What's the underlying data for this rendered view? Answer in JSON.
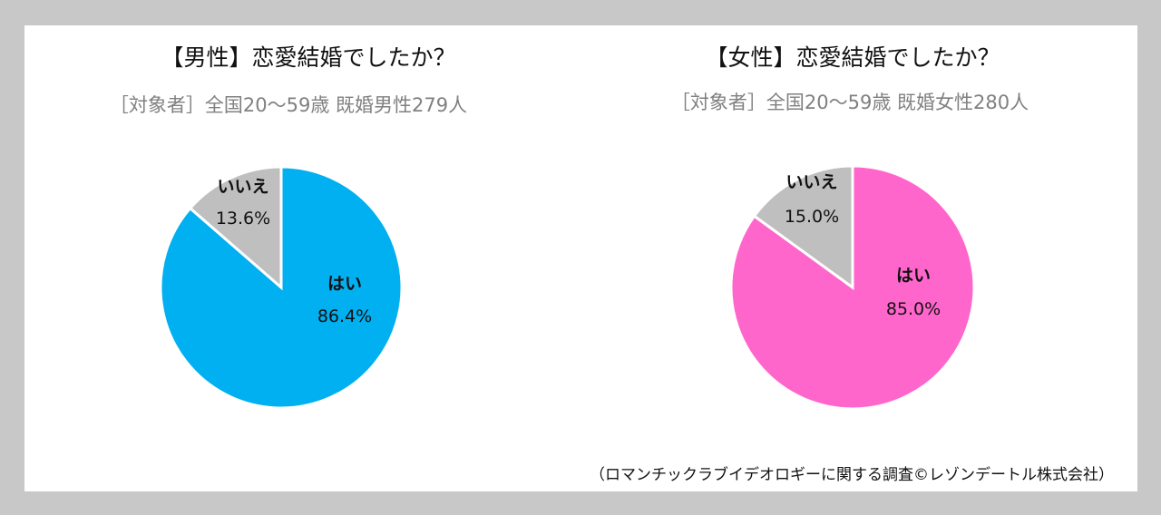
{
  "chart_data": [
    {
      "type": "pie",
      "title": "【男性】恋愛結婚でしたか？",
      "subtitle": "［対象者］全国20〜59歳 既婚男性279人",
      "start_angle": "12 o'clock, clockwise",
      "slices": [
        {
          "label": "はい",
          "value": 86.4,
          "value_label": "86.4%",
          "color": "#00b0f0"
        },
        {
          "label": "いいえ",
          "value": 13.6,
          "value_label": "13.6%",
          "color": "#bfbfbf"
        }
      ]
    },
    {
      "type": "pie",
      "title": "【女性】恋愛結婚でしたか？",
      "subtitle": "［対象者］全国20〜59歳 既婚女性280人",
      "start_angle": "12 o'clock, clockwise",
      "slices": [
        {
          "label": "はい",
          "value": 85.0,
          "value_label": "85.0%",
          "color": "#ff66cc"
        },
        {
          "label": "いいえ",
          "value": 15.0,
          "value_label": "15.0%",
          "color": "#bfbfbf"
        }
      ]
    }
  ],
  "footer": "（ロマンチックラブイデオロギーに関する調査©レゾンデートル株式会社）"
}
